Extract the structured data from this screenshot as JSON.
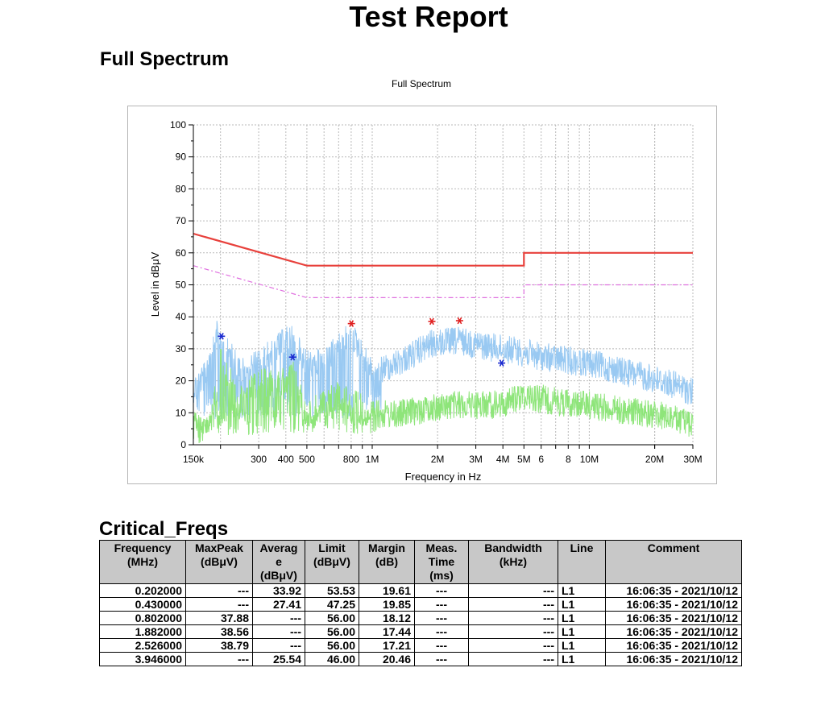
{
  "title": "Test Report",
  "section_spectrum": "Full Spectrum",
  "section_critical": "Critical_Freqs",
  "chart_data": {
    "type": "line",
    "title": "Full Spectrum",
    "xlabel": "Frequency in Hz",
    "ylabel": "Level in dBμV",
    "x_scale": "log",
    "xlim": [
      150000,
      30000000
    ],
    "ylim": [
      0,
      100
    ],
    "grid": true,
    "y_ticks": [
      "0",
      "10",
      "20",
      "30",
      "40",
      "50",
      "60",
      "70",
      "80",
      "90",
      "100"
    ],
    "x_tick_labels": [
      {
        "f": 150000,
        "label": "150k"
      },
      {
        "f": 300000,
        "label": "300"
      },
      {
        "f": 400000,
        "label": "400"
      },
      {
        "f": 500000,
        "label": "500"
      },
      {
        "f": 800000,
        "label": "800"
      },
      {
        "f": 1000000,
        "label": "1M"
      },
      {
        "f": 2000000,
        "label": "2M"
      },
      {
        "f": 3000000,
        "label": "3M"
      },
      {
        "f": 4000000,
        "label": "4M"
      },
      {
        "f": 5000000,
        "label": "5M"
      },
      {
        "f": 6000000,
        "label": "6"
      },
      {
        "f": 8000000,
        "label": "8"
      },
      {
        "f": 10000000,
        "label": "10M"
      },
      {
        "f": 20000000,
        "label": "20M"
      },
      {
        "f": 30000000,
        "label": "30M"
      }
    ],
    "colors": {
      "qp_limit": "#e8413c",
      "avg_limit": "#e070e0",
      "peak": "#99c9f2",
      "average": "#8ee57a",
      "peak_marker": "#e02020",
      "avg_marker": "#1a2ad0"
    },
    "limit_qp": [
      [
        150000,
        66
      ],
      [
        500000,
        56
      ],
      [
        5000000,
        56
      ],
      [
        5000000,
        60
      ],
      [
        30000000,
        60
      ]
    ],
    "limit_avg": [
      [
        150000,
        56
      ],
      [
        500000,
        46
      ],
      [
        5000000,
        46
      ],
      [
        5000000,
        50
      ],
      [
        30000000,
        50
      ]
    ],
    "peak_envelope": [
      [
        150000,
        22
      ],
      [
        170000,
        26
      ],
      [
        190000,
        41
      ],
      [
        202000,
        36
      ],
      [
        250000,
        28
      ],
      [
        300000,
        30
      ],
      [
        350000,
        34
      ],
      [
        420000,
        38
      ],
      [
        500000,
        30
      ],
      [
        600000,
        30
      ],
      [
        700000,
        35
      ],
      [
        802000,
        39
      ],
      [
        900000,
        33
      ],
      [
        1000000,
        27
      ],
      [
        1300000,
        30
      ],
      [
        1882000,
        36
      ],
      [
        2526000,
        37
      ],
      [
        3500000,
        35
      ],
      [
        4500000,
        34
      ],
      [
        6000000,
        32
      ],
      [
        10000000,
        30
      ],
      [
        15000000,
        27
      ],
      [
        20000000,
        25
      ],
      [
        25000000,
        23
      ],
      [
        30000000,
        21
      ]
    ],
    "average_envelope": [
      [
        150000,
        8
      ],
      [
        180000,
        10
      ],
      [
        202000,
        32
      ],
      [
        240000,
        18
      ],
      [
        300000,
        24
      ],
      [
        400000,
        24
      ],
      [
        430000,
        27
      ],
      [
        500000,
        14
      ],
      [
        700000,
        20
      ],
      [
        1000000,
        14
      ],
      [
        1300000,
        14
      ],
      [
        1882000,
        16
      ],
      [
        2526000,
        17
      ],
      [
        3946000,
        17
      ],
      [
        5000000,
        20
      ],
      [
        7000000,
        18
      ],
      [
        10000000,
        17
      ],
      [
        15000000,
        15
      ],
      [
        20000000,
        14
      ],
      [
        30000000,
        11
      ]
    ],
    "markers_peak": [
      [
        802000,
        37.88
      ],
      [
        1882000,
        38.56
      ],
      [
        2526000,
        38.79
      ]
    ],
    "markers_avg": [
      [
        202000,
        33.92
      ],
      [
        430000,
        27.41
      ],
      [
        3946000,
        25.54
      ]
    ]
  },
  "table": {
    "headers": [
      "Frequency\n(MHz)",
      "MaxPeak\n(dBμV)",
      "Averag\ne\n(dBμV)",
      "Limit\n(dBμV)",
      "Margin\n(dB)",
      "Meas.\nTime\n(ms)",
      "Bandwidth\n(kHz)",
      "Line",
      "Comment"
    ],
    "rows": [
      [
        "0.202000",
        "---",
        "33.92",
        "53.53",
        "19.61",
        "---",
        "---",
        "L1",
        "16:06:35 - 2021/10/12"
      ],
      [
        "0.430000",
        "---",
        "27.41",
        "47.25",
        "19.85",
        "---",
        "---",
        "L1",
        "16:06:35 - 2021/10/12"
      ],
      [
        "0.802000",
        "37.88",
        "---",
        "56.00",
        "18.12",
        "---",
        "---",
        "L1",
        "16:06:35 - 2021/10/12"
      ],
      [
        "1.882000",
        "38.56",
        "---",
        "56.00",
        "17.44",
        "---",
        "---",
        "L1",
        "16:06:35 - 2021/10/12"
      ],
      [
        "2.526000",
        "38.79",
        "---",
        "56.00",
        "17.21",
        "---",
        "---",
        "L1",
        "16:06:35 - 2021/10/12"
      ],
      [
        "3.946000",
        "---",
        "25.54",
        "46.00",
        "20.46",
        "---",
        "---",
        "L1",
        "16:06:35 - 2021/10/12"
      ]
    ]
  }
}
